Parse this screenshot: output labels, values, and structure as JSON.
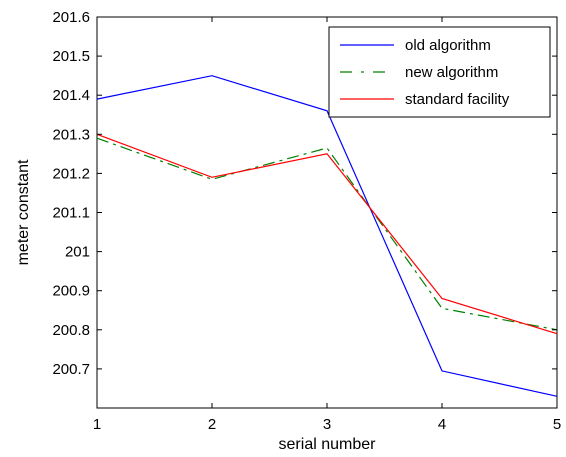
{
  "chart_data": {
    "type": "line",
    "title": "",
    "xlabel": "serial number",
    "ylabel": "meter constant",
    "x": [
      1,
      2,
      3,
      4,
      5
    ],
    "xlim": [
      1,
      5
    ],
    "ylim": [
      200.6,
      201.6
    ],
    "xticks": [
      "1",
      "2",
      "3",
      "4",
      "5"
    ],
    "yticks": [
      "200.7",
      "200.8",
      "200.9",
      "201",
      "201.1",
      "201.2",
      "201.3",
      "201.4",
      "201.5",
      "201.6"
    ],
    "grid": false,
    "legend_position": "top-right",
    "series": [
      {
        "name": "old algorithm",
        "values": [
          201.39,
          201.45,
          201.36,
          200.695,
          200.63
        ],
        "color": "#0000ff",
        "style": "solid"
      },
      {
        "name": "new algorithm",
        "values": [
          201.29,
          201.185,
          201.265,
          200.855,
          200.8
        ],
        "color": "#008000",
        "style": "dashdot"
      },
      {
        "name": "standard facility",
        "values": [
          201.3,
          201.19,
          201.25,
          200.88,
          200.79
        ],
        "color": "#ff0000",
        "style": "solid"
      }
    ]
  }
}
